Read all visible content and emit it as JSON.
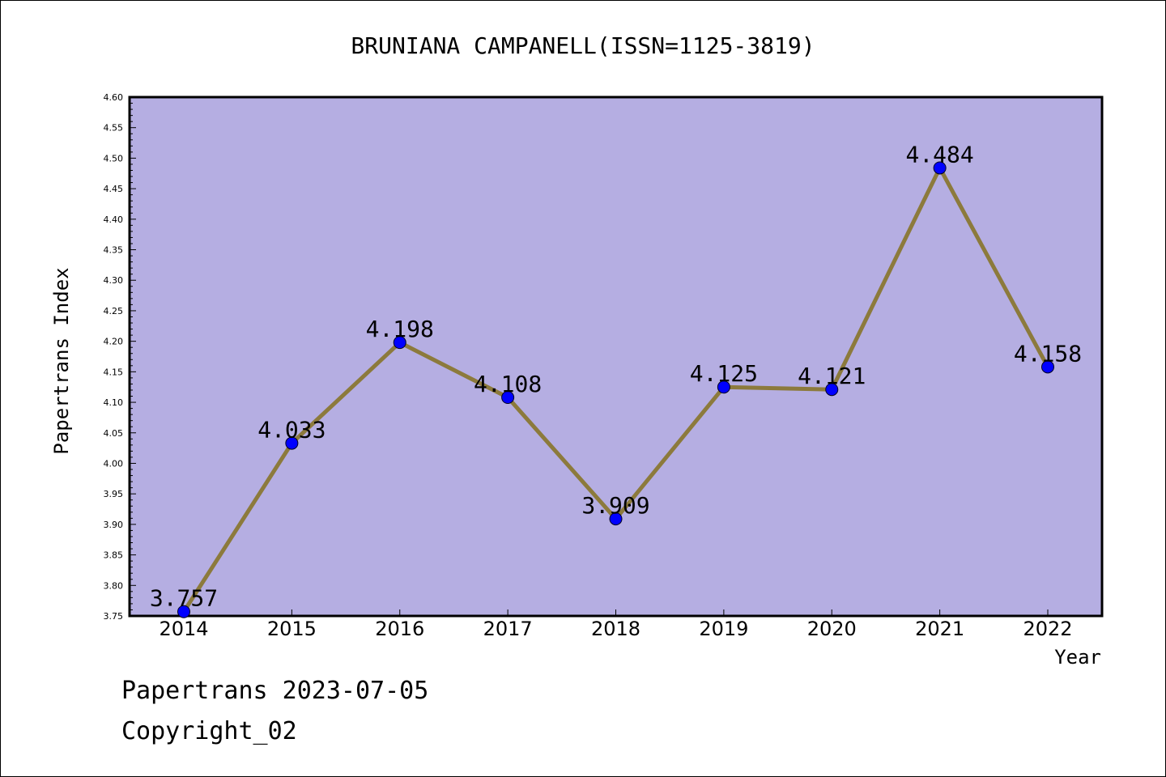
{
  "chart_data": {
    "type": "line",
    "title": "BRUNIANA CAMPANELL(ISSN=1125-3819)",
    "xlabel": "Year",
    "ylabel": "Papertrans Index",
    "categories": [
      "2014",
      "2015",
      "2016",
      "2017",
      "2018",
      "2019",
      "2020",
      "2021",
      "2022"
    ],
    "series": [
      {
        "values": [
          3.757,
          4.033,
          4.198,
          4.108,
          3.909,
          4.125,
          4.121,
          4.484,
          4.158
        ],
        "data_labels": [
          "3.757",
          "4.033",
          "4.198",
          "4.108",
          "3.909",
          "4.125",
          "4.121",
          "4.484",
          "4.158"
        ]
      }
    ],
    "ylim": [
      3.75,
      4.6
    ],
    "y_ticks": [
      "3.75",
      "3.80",
      "3.85",
      "3.90",
      "3.95",
      "4.00",
      "4.05",
      "4.10",
      "4.15",
      "4.20",
      "4.25",
      "4.30",
      "4.35",
      "4.40",
      "4.45",
      "4.50",
      "4.55",
      "4.60"
    ],
    "grid": false,
    "legend": "none",
    "colors": {
      "plot_background": "#b5aee2",
      "line": "#8c7a3c",
      "marker": "#0000ff"
    }
  },
  "footer": {
    "line1": "Papertrans 2023-07-05",
    "line2": "Copyright_02"
  }
}
